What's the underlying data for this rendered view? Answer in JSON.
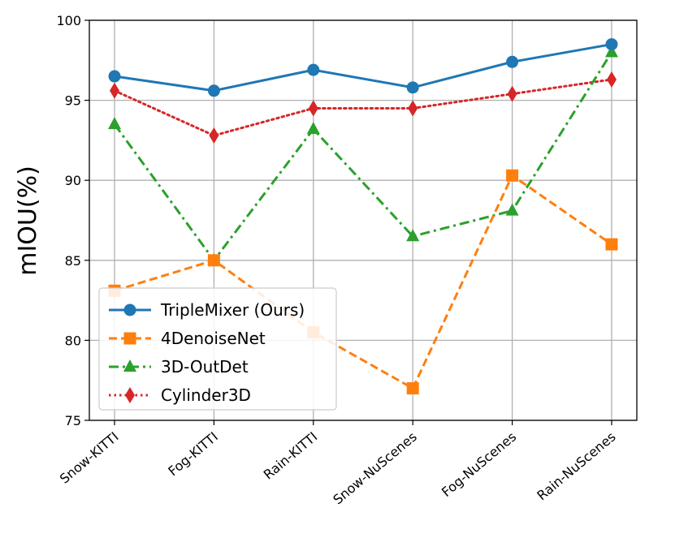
{
  "chart_data": {
    "type": "line",
    "title": "",
    "xlabel": "",
    "ylabel": "mIOU(%)",
    "categories": [
      "Snow-KITTI",
      "Fog-KITTI",
      "Rain-KITTI",
      "Snow-NuScenes",
      "Fog-NuScenes",
      "Rain-NuScenes"
    ],
    "ylim": [
      75,
      100
    ],
    "yticks": [
      75,
      80,
      85,
      90,
      95,
      100
    ],
    "grid": true,
    "legend_position": "lower-left",
    "series": [
      {
        "name": "TripleMixer (Ours)",
        "values": [
          96.5,
          95.6,
          96.9,
          95.8,
          97.4,
          98.5
        ],
        "color": "#1f77b4",
        "linestyle": "solid",
        "marker": "circle"
      },
      {
        "name": "4DenoiseNet",
        "values": [
          83.1,
          85.0,
          80.5,
          77.0,
          90.3,
          86.0
        ],
        "color": "#ff7f0e",
        "linestyle": "dashed",
        "marker": "square"
      },
      {
        "name": "3D-OutDet",
        "values": [
          93.5,
          85.0,
          93.2,
          86.5,
          88.1,
          98.0
        ],
        "color": "#2ca02c",
        "linestyle": "dashdot",
        "marker": "triangle"
      },
      {
        "name": "Cylinder3D",
        "values": [
          95.6,
          92.8,
          94.5,
          94.5,
          95.4,
          96.3
        ],
        "color": "#d62728",
        "linestyle": "dotted",
        "marker": "diamond"
      }
    ]
  }
}
